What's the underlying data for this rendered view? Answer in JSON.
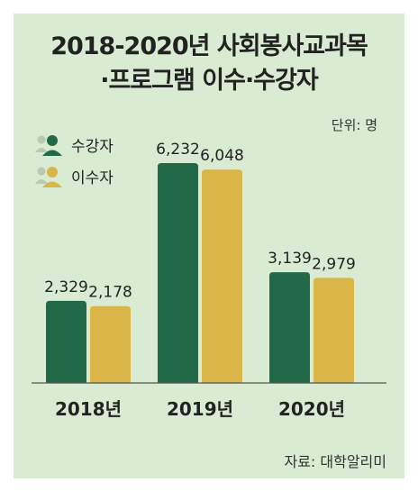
{
  "title_line1": "2018-2020년 사회봉사교과목",
  "title_line2": "·프로그램 이수·수강자",
  "unit": "단위: 명",
  "source": "자료: 대학알리미",
  "colors": {
    "background": "#d9ebd2",
    "series1": "#22694a",
    "series2": "#dab547"
  },
  "legend": [
    {
      "label": "수강자",
      "icon": "people-icon"
    },
    {
      "label": "이수자",
      "icon": "people-icon"
    }
  ],
  "chart_data": {
    "type": "bar",
    "categories": [
      "2018년",
      "2019년",
      "2020년"
    ],
    "series": [
      {
        "name": "수강자",
        "values": [
          2329,
          6232,
          3139
        ],
        "labels": [
          "2,329",
          "6,232",
          "3,139"
        ]
      },
      {
        "name": "이수자",
        "values": [
          2178,
          6048,
          2979
        ],
        "labels": [
          "2,178",
          "6,048",
          "2,979"
        ]
      }
    ],
    "ylim": [
      0,
      6600
    ],
    "grid": false,
    "legend_position": "top-left"
  }
}
